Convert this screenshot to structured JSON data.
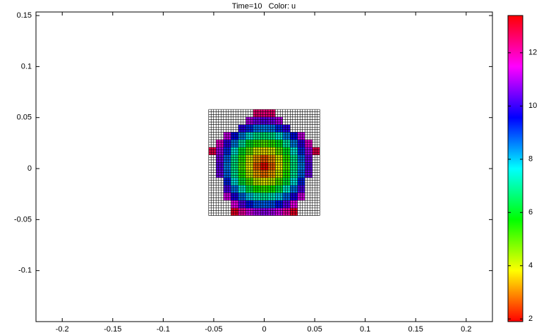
{
  "chart_data": {
    "type": "heatmap",
    "title": "Time=10   Color: u",
    "colormap": "hsv",
    "mesh": true,
    "x": [
      -0.055,
      -0.0477,
      -0.0403,
      -0.033,
      -0.0257,
      -0.0183,
      -0.011,
      -0.0037,
      0.0037,
      0.011,
      0.0183,
      0.0257,
      0.033,
      0.0403,
      0.0477,
      0.055
    ],
    "y": [
      -0.046,
      -0.0386,
      -0.0311,
      -0.0237,
      -0.0163,
      -0.0089,
      -0.0014,
      0.006,
      0.0134,
      0.0209,
      0.0283,
      0.0357,
      0.0431,
      0.0506,
      0.058
    ],
    "values": [
      [
        null,
        null,
        null,
        13.1,
        12.1,
        11.3,
        10.9,
        10.7,
        10.9,
        11.3,
        12.1,
        13.1,
        null,
        null,
        null
      ],
      [
        null,
        null,
        null,
        11.5,
        10.3,
        9.4,
        8.9,
        8.8,
        8.9,
        9.4,
        10.3,
        11.5,
        null,
        null,
        null
      ],
      [
        null,
        null,
        11.3,
        9.8,
        8.7,
        7.9,
        7.3,
        7.0,
        7.3,
        7.9,
        8.7,
        9.8,
        11.3,
        null,
        null
      ],
      [
        null,
        null,
        10.2,
        8.6,
        7.4,
        6.3,
        5.6,
        5.4,
        5.6,
        6.3,
        7.4,
        8.6,
        10.2,
        null,
        null
      ],
      [
        null,
        null,
        9.3,
        7.6,
        6.2,
        5.1,
        4.2,
        3.9,
        4.2,
        5.1,
        6.2,
        7.6,
        9.3,
        null,
        null
      ],
      [
        null,
        10.5,
        8.7,
        7.0,
        5.5,
        4.2,
        3.2,
        2.8,
        3.2,
        4.2,
        5.5,
        7.0,
        8.7,
        10.5,
        null
      ],
      [
        null,
        10.3,
        8.5,
        6.8,
        5.2,
        3.8,
        2.7,
        2.0,
        2.7,
        3.8,
        5.2,
        6.8,
        8.5,
        10.3,
        null
      ],
      [
        null,
        10.5,
        8.7,
        6.9,
        5.4,
        4.0,
        3.1,
        2.6,
        3.1,
        4.0,
        5.4,
        6.9,
        8.7,
        10.5,
        null
      ],
      [
        12.8,
        10.9,
        9.2,
        7.5,
        6.0,
        4.9,
        4.0,
        3.7,
        4.0,
        4.9,
        6.0,
        7.5,
        9.2,
        10.9,
        12.8
      ],
      [
        null,
        11.7,
        9.9,
        8.5,
        7.1,
        6.0,
        5.4,
        5.1,
        5.4,
        6.0,
        7.1,
        8.5,
        9.9,
        11.7,
        null
      ],
      [
        null,
        null,
        11.2,
        9.5,
        8.5,
        7.5,
        6.9,
        6.7,
        6.9,
        7.5,
        8.5,
        9.5,
        11.2,
        null,
        null
      ],
      [
        null,
        null,
        null,
        null,
        9.9,
        9.2,
        8.6,
        8.5,
        8.6,
        9.2,
        9.9,
        null,
        null,
        null,
        null
      ],
      [
        null,
        null,
        null,
        null,
        null,
        11.0,
        10.5,
        10.3,
        10.5,
        11.0,
        null,
        null,
        null,
        null,
        null
      ],
      [
        null,
        null,
        null,
        null,
        null,
        null,
        12.5,
        12.4,
        12.5,
        null,
        null,
        null,
        null,
        null,
        null
      ]
    ],
    "xlim": [
      -0.226,
      0.226
    ],
    "ylim": [
      -0.15,
      0.1535
    ],
    "xticks": [
      -0.2,
      -0.15,
      -0.1,
      -0.05,
      0,
      0.05,
      0.1,
      0.15,
      0.2
    ],
    "yticks": [
      -0.1,
      -0.05,
      0,
      0.05,
      0.1,
      0.15
    ],
    "colorbar": {
      "lim": [
        1.9,
        13.4
      ],
      "ticks": [
        2,
        4,
        6,
        8,
        10,
        12
      ]
    }
  }
}
